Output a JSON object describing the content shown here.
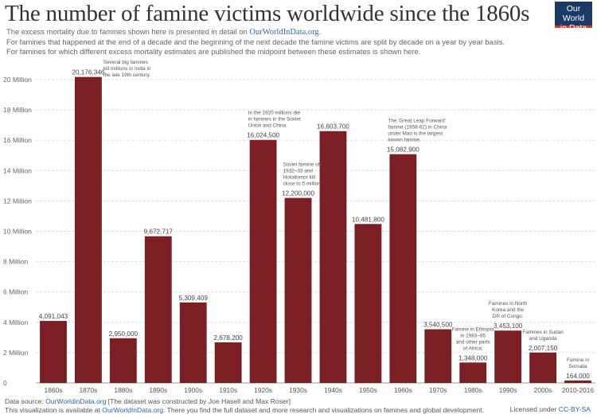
{
  "header": {
    "title": "The number of famine victims worldwide since the 1860s",
    "subtitle_1_prefix": "The excess mortality due to famines shown here is presented in detail on ",
    "subtitle_1_link": "OurWorldInData.org",
    "subtitle_1_suffix": ".",
    "subtitle_2": "For famines that happened at the end of a decade and the beginning of the next decade the famine victims are split by decade on a year by year basis.",
    "subtitle_3": "For famines for which different excess mortality estimates are published the midpoint between these estimates is shown here."
  },
  "logo": {
    "line1": "Our World",
    "line2": "in Data",
    "bg_color": "#1a3a66",
    "accent_color": "#c0392b"
  },
  "chart_data": {
    "type": "bar",
    "categories": [
      "1860s",
      "1870s",
      "1880s",
      "1890s",
      "1900s",
      "1910s",
      "1920s",
      "1930s",
      "1940s",
      "1950s",
      "1960s",
      "1970s",
      "1980s",
      "1990s",
      "2000s",
      "2010-2016"
    ],
    "values": [
      4091043,
      20176346,
      2950000,
      9672717,
      5309409,
      2678200,
      16024500,
      12200000,
      16603700,
      10481800,
      15082900,
      3540500,
      1348000,
      3453100,
      2007150,
      164000
    ],
    "value_labels": [
      "4,091,043",
      "20,176,346",
      "2,950,000",
      "9,672,717",
      "5,309,409",
      "2,678,200",
      "16,024,500",
      "12,200,000",
      "16,603,700",
      "10,481,800",
      "15,082,900",
      "3,540,500",
      "1,348,000",
      "3,453,100",
      "2,007,150",
      "164,000"
    ],
    "ylim": [
      0,
      20000000
    ],
    "yticks": [
      0,
      2000000,
      4000000,
      6000000,
      8000000,
      10000000,
      12000000,
      14000000,
      16000000,
      18000000,
      20000000
    ],
    "ytick_labels": [
      "0",
      "2 Million",
      "4 Million",
      "6 Million",
      "8 Million",
      "10 Million",
      "12 Million",
      "14 Million",
      "16 Million",
      "18 Million",
      "20 Million"
    ],
    "grid": true,
    "bar_color": "#7b1f24",
    "annotations": [
      {
        "category": "1870s",
        "align": "left",
        "lines": [
          "Several big famines",
          "kill millions in India in",
          "the late 19th century."
        ]
      },
      {
        "category": "1920s",
        "align": "left",
        "lines": [
          "In the 1920 millions die",
          "in famines in the Soviet",
          "Union and China."
        ]
      },
      {
        "category": "1930s",
        "align": "left",
        "lines": [
          "Soviet famine of",
          "1932–33 and",
          "Holodomor kill",
          "close to 5 million."
        ]
      },
      {
        "category": "1960s",
        "align": "left",
        "lines": [
          "The 'Great Leap Forward'",
          "famine (1958-62) in China",
          "under Mao is the largest",
          "known famine."
        ]
      },
      {
        "category": "1980s",
        "align": "center",
        "lines": [
          "Famine in Ethiopia",
          "in 1983–85",
          "and other parts",
          "of Africa."
        ]
      },
      {
        "category": "1990s",
        "align": "center",
        "lines": [
          "Famines in North",
          "Korea and the",
          "DR of Congo."
        ]
      },
      {
        "category": "2000s",
        "align": "center",
        "lines": [
          "Famines in Sudan",
          "and Uganda"
        ]
      },
      {
        "category": "2010-2016",
        "align": "center",
        "lines": [
          "Famine in",
          "Somalia"
        ]
      }
    ]
  },
  "footer": {
    "source_prefix": "Data source: ",
    "source_link": "OurWorldinData.org",
    "source_suffix": " [The dataset was constructed by Joe Hasell and Max Roser]",
    "available_prefix": "This visualization is available at ",
    "available_link": "OurWorldInData.org",
    "available_suffix": ". There you find the full dataset and more research and visualizations on famines and global development.",
    "license_prefix": "Licensed under ",
    "license_link": "CC-BY-SA"
  }
}
